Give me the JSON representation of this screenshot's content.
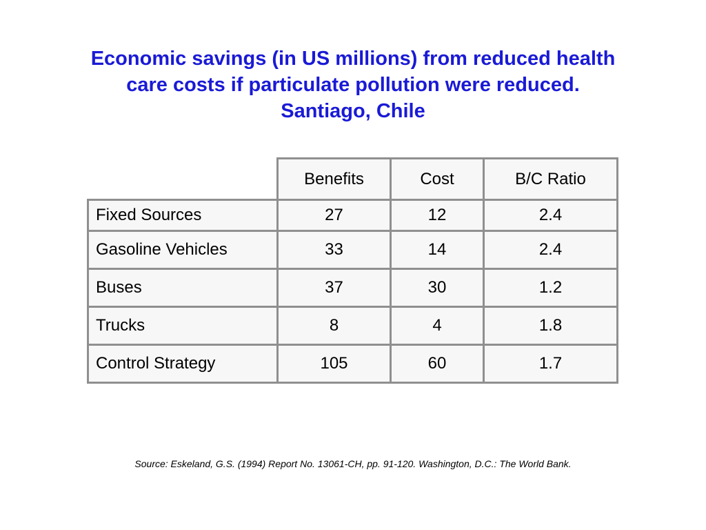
{
  "title": {
    "line1": "Economic savings (in US millions) from reduced health",
    "line2": "care costs if particulate pollution were reduced.",
    "line3": "Santiago, Chile"
  },
  "table": {
    "headers": [
      "Benefits",
      "Cost",
      "B/C Ratio"
    ],
    "rows": [
      {
        "label": "Fixed Sources",
        "benefits": "27",
        "cost": "12",
        "ratio": "2.4"
      },
      {
        "label": "Gasoline Vehicles",
        "benefits": "33",
        "cost": "14",
        "ratio": "2.4"
      },
      {
        "label": "Buses",
        "benefits": "37",
        "cost": "30",
        "ratio": "1.2"
      },
      {
        "label": "Trucks",
        "benefits": "8",
        "cost": "4",
        "ratio": "1.8"
      },
      {
        "label": "Control Strategy",
        "benefits": "105",
        "cost": "60",
        "ratio": "1.7"
      }
    ]
  },
  "source": "Source: Eskeland, G.S. (1994) Report No. 13061-CH, pp. 91-120. Washington, D.C.: The World Bank.",
  "colors": {
    "title": "#1a1ad6",
    "border": "#8f8f8f",
    "cell_background": "#f7f7f7"
  }
}
